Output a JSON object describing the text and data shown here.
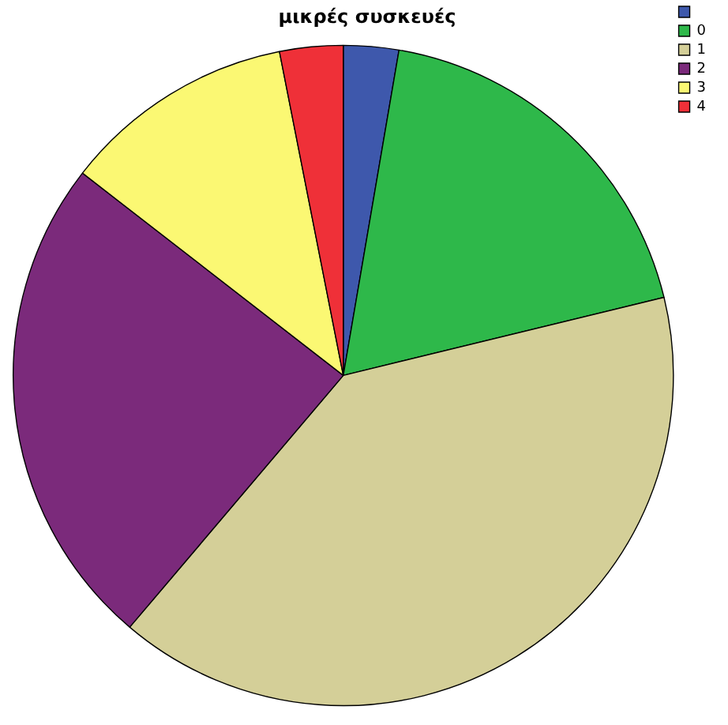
{
  "chart_data": {
    "type": "pie",
    "title": "μικρές συσκευές",
    "categories": [
      null,
      "0",
      "1",
      "2",
      "3",
      "4"
    ],
    "values": [
      2.7,
      18.5,
      40.0,
      24.3,
      11.4,
      3.1
    ],
    "colors": [
      "#3e58ac",
      "#2eb84a",
      "#d4cf98",
      "#7b2a7b",
      "#fbf873",
      "#ef3038"
    ],
    "legend": "top right"
  }
}
